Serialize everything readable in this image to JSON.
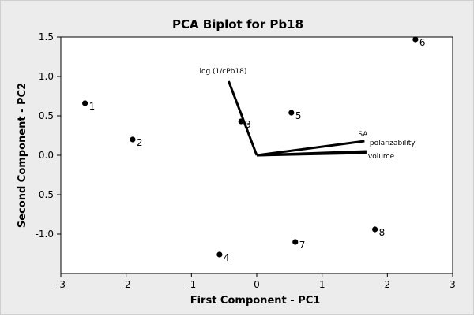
{
  "chart_data": {
    "type": "scatter",
    "title": "PCA  Biplot for Pb18",
    "xlabel": "First Component - PC1",
    "ylabel": "Second Component - PC2",
    "xlim": [
      -3,
      3
    ],
    "ylim": [
      -1.5,
      1.5
    ],
    "x_ticks": [
      -3,
      -2,
      -1,
      0,
      1,
      2,
      3
    ],
    "y_ticks": [
      1.5,
      1.0,
      0.5,
      0.0,
      -0.5,
      -1.0
    ],
    "y_tick_labels": [
      "1.5",
      "1.0",
      "0.5",
      "0.0",
      "-0.5",
      "-1.0"
    ],
    "grid": false,
    "points": [
      {
        "label": "1",
        "x": -2.63,
        "y": 0.66
      },
      {
        "label": "2",
        "x": -1.9,
        "y": 0.2
      },
      {
        "label": "3",
        "x": -0.24,
        "y": 0.43
      },
      {
        "label": "4",
        "x": -0.57,
        "y": -1.26
      },
      {
        "label": "5",
        "x": 0.53,
        "y": 0.54
      },
      {
        "label": "6",
        "x": 2.43,
        "y": 1.47
      },
      {
        "label": "7",
        "x": 0.59,
        "y": -1.1
      },
      {
        "label": "8",
        "x": 1.81,
        "y": -0.94
      }
    ],
    "vectors": [
      {
        "label": "log (1/cPb18)",
        "x": -0.43,
        "y": 0.94
      },
      {
        "label": "SA",
        "x": 1.65,
        "y": 0.18
      },
      {
        "label": "polarizability",
        "x": 1.68,
        "y": 0.05
      },
      {
        "label": "volume",
        "x": 1.68,
        "y": 0.03
      }
    ]
  },
  "colors": {
    "background": "#ececec",
    "plot_area": "#ffffff",
    "ink": "#000000"
  }
}
